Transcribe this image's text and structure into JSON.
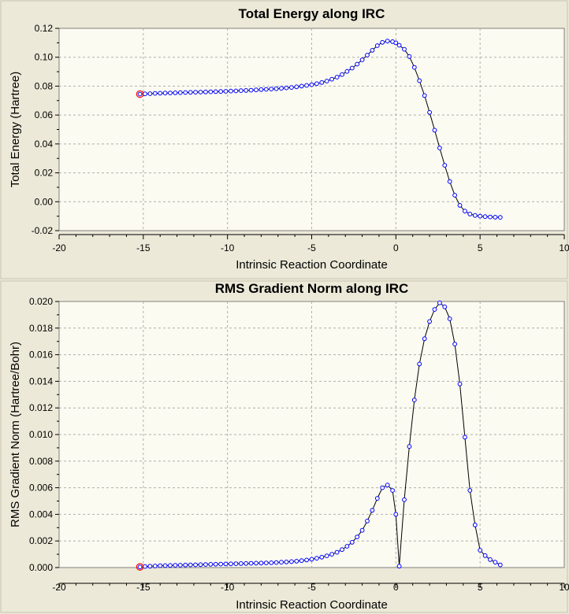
{
  "window": {
    "background": "#ece9d8",
    "plot_background": "#fbfbf1",
    "grid_color": "#b0b0b0",
    "line_color": "#000000",
    "marker_color": "#0000ff",
    "highlight_color": "#ff0000"
  },
  "chart_data": [
    {
      "type": "line",
      "title": "Total Energy along IRC",
      "xlabel": "Intrinsic Reaction Coordinate",
      "ylabel": "Total Energy (Hartree)",
      "xlim": [
        -20,
        10
      ],
      "ylim": [
        -0.02,
        0.12
      ],
      "xticks": [
        -20,
        -15,
        -10,
        -5,
        0,
        5,
        10
      ],
      "yticks": [
        -0.02,
        0.0,
        0.02,
        0.04,
        0.06,
        0.08,
        0.1,
        0.12
      ],
      "ytick_labels": [
        "-0.02",
        "0.00",
        "0.02",
        "0.04",
        "0.06",
        "0.08",
        "0.10",
        "0.12"
      ],
      "xtick_labels": [
        "-20",
        "-15",
        "-10",
        "-5",
        "0",
        "5",
        "10"
      ],
      "grid": true,
      "highlighted_point": {
        "x": -15.2,
        "y": 0.0745
      },
      "series": [
        {
          "x": [
            -15.2,
            -14.9,
            -14.6,
            -14.3,
            -14.0,
            -13.7,
            -13.4,
            -13.1,
            -12.8,
            -12.5,
            -12.2,
            -11.9,
            -11.6,
            -11.3,
            -11.0,
            -10.7,
            -10.4,
            -10.1,
            -9.8,
            -9.5,
            -9.2,
            -8.9,
            -8.6,
            -8.3,
            -8.0,
            -7.7,
            -7.4,
            -7.1,
            -6.8,
            -6.5,
            -6.2,
            -5.9,
            -5.6,
            -5.3,
            -5.0,
            -4.7,
            -4.4,
            -4.1,
            -3.8,
            -3.5,
            -3.2,
            -2.9,
            -2.6,
            -2.3,
            -2.0,
            -1.7,
            -1.4,
            -1.1,
            -0.8,
            -0.5,
            -0.2,
            0.0,
            0.2,
            0.5,
            0.8,
            1.1,
            1.4,
            1.7,
            2.0,
            2.3,
            2.6,
            2.9,
            3.2,
            3.5,
            3.8,
            4.1,
            4.4,
            4.7,
            5.0,
            5.3,
            5.6,
            5.9,
            6.2
          ],
          "y": [
            0.0745,
            0.0747,
            0.0748,
            0.075,
            0.0751,
            0.0752,
            0.0753,
            0.0754,
            0.0755,
            0.0756,
            0.0757,
            0.0758,
            0.0759,
            0.076,
            0.0761,
            0.0762,
            0.0763,
            0.0764,
            0.0766,
            0.0767,
            0.0769,
            0.077,
            0.0772,
            0.0774,
            0.0776,
            0.0778,
            0.078,
            0.0782,
            0.0785,
            0.0788,
            0.0791,
            0.0795,
            0.08,
            0.0805,
            0.081,
            0.0817,
            0.0825,
            0.0835,
            0.0848,
            0.0862,
            0.088,
            0.0902,
            0.0925,
            0.0952,
            0.0982,
            0.1015,
            0.1048,
            0.108,
            0.1103,
            0.1112,
            0.1108,
            0.11,
            0.1083,
            0.1055,
            0.1005,
            0.093,
            0.0838,
            0.0735,
            0.0618,
            0.0495,
            0.0372,
            0.0252,
            0.014,
            0.0045,
            -0.0025,
            -0.0065,
            -0.0085,
            -0.0095,
            -0.01,
            -0.0103,
            -0.0105,
            -0.0107,
            -0.0108
          ]
        }
      ]
    },
    {
      "type": "line",
      "title": "RMS Gradient Norm along IRC",
      "xlabel": "Intrinsic Reaction Coordinate",
      "ylabel": "RMS Gradient Norm (Hartree/Bohr)",
      "xlim": [
        -20,
        10
      ],
      "ylim": [
        0.0,
        0.02
      ],
      "xticks": [
        -20,
        -15,
        -10,
        -5,
        0,
        5,
        10
      ],
      "yticks": [
        0.0,
        0.002,
        0.004,
        0.006,
        0.008,
        0.01,
        0.012,
        0.014,
        0.016,
        0.018,
        0.02
      ],
      "ytick_labels": [
        "0.000",
        "0.002",
        "0.004",
        "0.006",
        "0.008",
        "0.010",
        "0.012",
        "0.014",
        "0.016",
        "0.018",
        "0.020"
      ],
      "xtick_labels": [
        "-20",
        "-15",
        "-10",
        "-5",
        "0",
        "5",
        "10"
      ],
      "grid": true,
      "highlighted_point": {
        "x": -15.2,
        "y": 5e-05
      },
      "series": [
        {
          "x": [
            -15.2,
            -14.9,
            -14.6,
            -14.3,
            -14.0,
            -13.7,
            -13.4,
            -13.1,
            -12.8,
            -12.5,
            -12.2,
            -11.9,
            -11.6,
            -11.3,
            -11.0,
            -10.7,
            -10.4,
            -10.1,
            -9.8,
            -9.5,
            -9.2,
            -8.9,
            -8.6,
            -8.3,
            -8.0,
            -7.7,
            -7.4,
            -7.1,
            -6.8,
            -6.5,
            -6.2,
            -5.9,
            -5.6,
            -5.3,
            -5.0,
            -4.7,
            -4.4,
            -4.1,
            -3.8,
            -3.5,
            -3.2,
            -2.9,
            -2.6,
            -2.3,
            -2.0,
            -1.7,
            -1.4,
            -1.1,
            -0.8,
            -0.5,
            -0.2,
            0.0,
            0.2,
            0.5,
            0.8,
            1.1,
            1.4,
            1.7,
            2.0,
            2.3,
            2.6,
            2.9,
            3.2,
            3.5,
            3.8,
            4.1,
            4.4,
            4.7,
            5.0,
            5.3,
            5.6,
            5.9,
            6.2
          ],
          "y": [
            5e-05,
            8e-05,
            0.0001,
            0.00012,
            0.00014,
            0.00015,
            0.00016,
            0.00017,
            0.00018,
            0.00019,
            0.0002,
            0.00021,
            0.00022,
            0.00023,
            0.00024,
            0.00025,
            0.00026,
            0.00027,
            0.00028,
            0.00029,
            0.0003,
            0.00031,
            0.00032,
            0.00033,
            0.00034,
            0.00035,
            0.00036,
            0.00038,
            0.0004,
            0.00042,
            0.00045,
            0.00048,
            0.00052,
            0.00057,
            0.00063,
            0.0007,
            0.00078,
            0.00088,
            0.001,
            0.00115,
            0.00135,
            0.0016,
            0.0019,
            0.0023,
            0.0028,
            0.0035,
            0.0043,
            0.0052,
            0.006,
            0.0062,
            0.0058,
            0.004,
            0.0001,
            0.0051,
            0.0091,
            0.0126,
            0.0153,
            0.0172,
            0.0185,
            0.0194,
            0.0199,
            0.0196,
            0.0187,
            0.0168,
            0.0138,
            0.0098,
            0.0058,
            0.0032,
            0.0013,
            0.0009,
            0.0006,
            0.0004,
            0.0002
          ]
        }
      ]
    }
  ]
}
